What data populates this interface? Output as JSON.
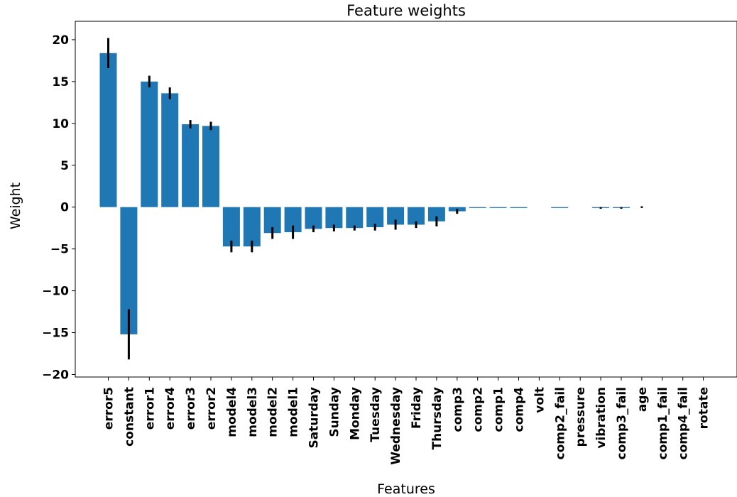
{
  "chart_data": {
    "type": "bar",
    "title": "Feature weights",
    "xlabel": "Features",
    "ylabel": "Weight",
    "ylim": [
      -20.3,
      22.2
    ],
    "yticks": [
      20,
      15,
      10,
      5,
      0,
      -5,
      -10,
      -15,
      -20
    ],
    "ytick_labels": [
      "20",
      "15",
      "10",
      "5",
      "0",
      "−5",
      "−10",
      "−15",
      "−20"
    ],
    "bar_color": "#1f77b4",
    "error_color": "#000000",
    "grid": false,
    "categories": [
      "error5",
      "constant",
      "error1",
      "error4",
      "error3",
      "error2",
      "model4",
      "model3",
      "model2",
      "model1",
      "Saturday",
      "Sunday",
      "Monday",
      "Tuesday",
      "Wednesday",
      "Friday",
      "Thursday",
      "comp3",
      "comp2",
      "comp1",
      "comp4",
      "volt",
      "comp2_fail",
      "pressure",
      "vibration",
      "comp3_fail",
      "age",
      "comp1_fail",
      "comp4_fail",
      "rotate"
    ],
    "values": [
      18.4,
      -15.2,
      15.0,
      13.6,
      9.9,
      9.7,
      -4.7,
      -4.7,
      -3.1,
      -3.0,
      -2.6,
      -2.5,
      -2.5,
      -2.4,
      -2.1,
      -2.1,
      -1.7,
      -0.5,
      -0.1,
      -0.1,
      -0.1,
      0.0,
      -0.1,
      0.0,
      -0.1,
      -0.1,
      0.0,
      0.0,
      0.0,
      0.0
    ],
    "errors": [
      1.8,
      3.0,
      0.7,
      0.7,
      0.5,
      0.5,
      0.7,
      0.7,
      0.7,
      0.8,
      0.4,
      0.4,
      0.3,
      0.4,
      0.6,
      0.4,
      0.6,
      0.3,
      0.0,
      0.0,
      0.0,
      0.0,
      0.0,
      0.0,
      0.1,
      0.1,
      0.1,
      0.0,
      0.0,
      0.0
    ]
  }
}
